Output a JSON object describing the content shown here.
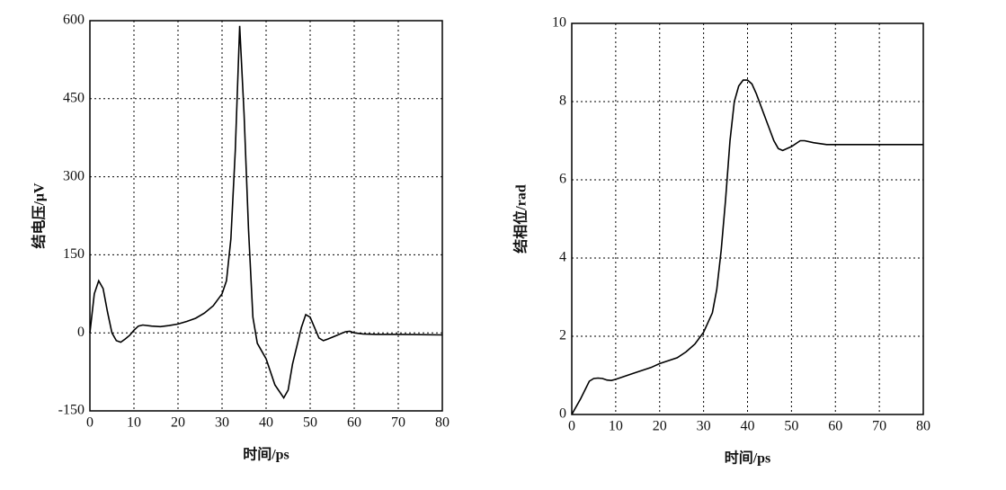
{
  "chart_data": [
    {
      "type": "line",
      "xlabel": "时间/ps",
      "ylabel": "结电压/μV",
      "color": "#000000",
      "grid": true,
      "xlim": [
        0,
        80
      ],
      "xticks": [
        0,
        10,
        20,
        30,
        40,
        50,
        60,
        70,
        80
      ],
      "ylim": [
        -150,
        600
      ],
      "yticks": [
        -150,
        0,
        150,
        300,
        450,
        600
      ],
      "x": [
        0,
        1,
        2,
        3,
        4,
        5,
        6,
        7,
        8,
        9,
        10,
        11,
        12,
        14,
        16,
        18,
        20,
        22,
        24,
        26,
        28,
        30,
        31,
        32,
        33,
        34,
        35,
        36,
        37,
        38,
        40,
        42,
        44,
        45,
        46,
        48,
        49,
        50,
        51,
        52,
        53,
        54,
        56,
        58,
        59,
        60,
        62,
        65,
        70,
        80
      ],
      "values": [
        0,
        75,
        100,
        85,
        40,
        0,
        -15,
        -18,
        -12,
        -5,
        5,
        13,
        15,
        13,
        12,
        14,
        17,
        22,
        28,
        38,
        52,
        75,
        100,
        180,
        350,
        590,
        420,
        200,
        30,
        -20,
        -50,
        -100,
        -125,
        -110,
        -60,
        10,
        35,
        30,
        10,
        -10,
        -15,
        -12,
        -5,
        2,
        3,
        0,
        -2,
        -3,
        -3,
        -4
      ]
    },
    {
      "type": "line",
      "xlabel": "时间/ps",
      "ylabel": "结相位/rad",
      "color": "#000000",
      "grid": true,
      "xlim": [
        0,
        80
      ],
      "xticks": [
        0,
        10,
        20,
        30,
        40,
        50,
        60,
        70,
        80
      ],
      "ylim": [
        0,
        10
      ],
      "yticks": [
        0,
        2,
        4,
        6,
        8,
        10
      ],
      "x": [
        0,
        2,
        4,
        5,
        6,
        7,
        8,
        9,
        10,
        14,
        18,
        20,
        24,
        26,
        28,
        30,
        32,
        33,
        34,
        35,
        36,
        37,
        38,
        39,
        40,
        41,
        42,
        44,
        46,
        47,
        48,
        50,
        52,
        53,
        55,
        58,
        60,
        70,
        80
      ],
      "values": [
        0,
        0.4,
        0.85,
        0.92,
        0.93,
        0.92,
        0.88,
        0.87,
        0.9,
        1.05,
        1.2,
        1.3,
        1.45,
        1.6,
        1.8,
        2.1,
        2.6,
        3.2,
        4.2,
        5.5,
        7,
        8,
        8.4,
        8.55,
        8.55,
        8.45,
        8.2,
        7.6,
        7.0,
        6.8,
        6.75,
        6.85,
        7.0,
        7.0,
        6.95,
        6.9,
        6.9,
        6.9,
        6.9
      ]
    }
  ]
}
